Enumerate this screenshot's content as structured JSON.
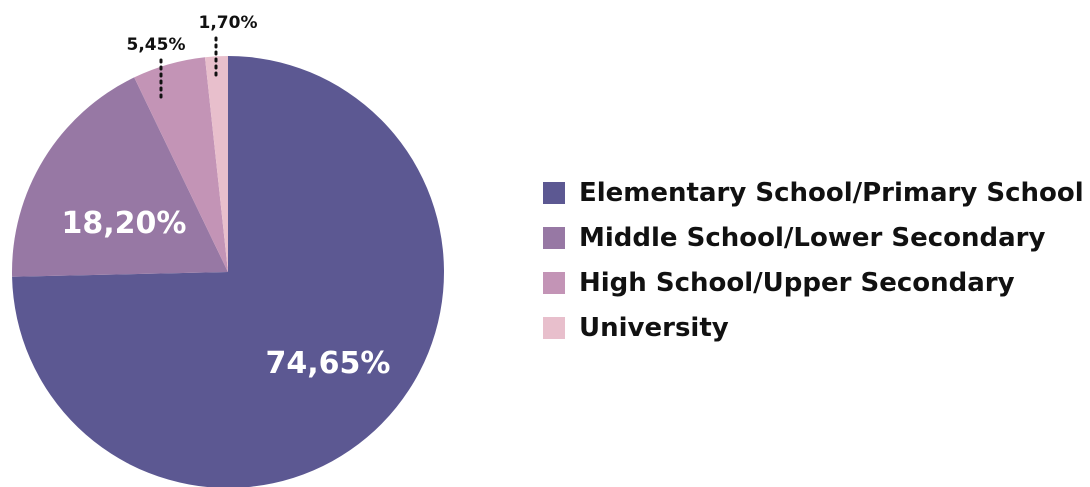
{
  "chart_data": {
    "type": "pie",
    "title": "",
    "categories": [
      "Elementary School/Primary School",
      "Middle School/Lower Secondary",
      "High School/Upper Secondary",
      "University"
    ],
    "values": [
      74.65,
      18.2,
      5.45,
      1.7
    ],
    "value_labels": [
      "74,65%",
      "18,20%",
      "5,45%",
      "1,70%"
    ],
    "colors": [
      "#5c5892",
      "#9778a4",
      "#c394b6",
      "#e8bfcc"
    ],
    "start_angle": "12 o'clock",
    "direction": "counterclockwise",
    "legend_position": "right"
  }
}
